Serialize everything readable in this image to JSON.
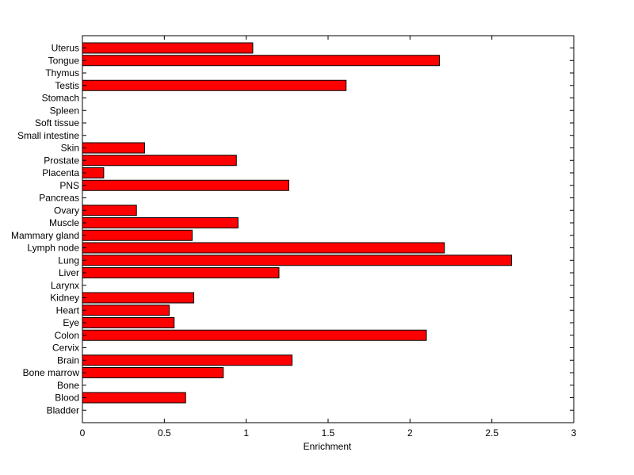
{
  "chart_data": {
    "type": "bar",
    "orientation": "horizontal",
    "categories": [
      "Uterus",
      "Tongue",
      "Thymus",
      "Testis",
      "Stomach",
      "Spleen",
      "Soft tissue",
      "Small intestine",
      "Skin",
      "Prostate",
      "Placenta",
      "PNS",
      "Pancreas",
      "Ovary",
      "Muscle",
      "Mammary gland",
      "Lymph node",
      "Lung",
      "Liver",
      "Larynx",
      "Kidney",
      "Heart",
      "Eye",
      "Colon",
      "Cervix",
      "Brain",
      "Bone marrow",
      "Bone",
      "Blood",
      "Bladder"
    ],
    "values": [
      1.04,
      2.18,
      0,
      1.61,
      0,
      0,
      0,
      0,
      0.38,
      0.94,
      0.13,
      1.26,
      0,
      0.33,
      0.95,
      0.67,
      2.21,
      2.62,
      1.2,
      0,
      0.68,
      0.53,
      0.56,
      2.1,
      0,
      1.28,
      0.86,
      0,
      0.63,
      0
    ],
    "xlabel": "Enrichment",
    "ylabel": "",
    "title": "",
    "xlim": [
      0,
      3
    ],
    "xticks": [
      "0",
      "0.5",
      "1",
      "1.5",
      "2",
      "2.5",
      "3"
    ],
    "xtick_values": [
      0,
      0.5,
      1,
      1.5,
      2,
      2.5,
      3
    ],
    "bar_color": "#ff0000",
    "edge_color": "#000000",
    "grid": false
  }
}
